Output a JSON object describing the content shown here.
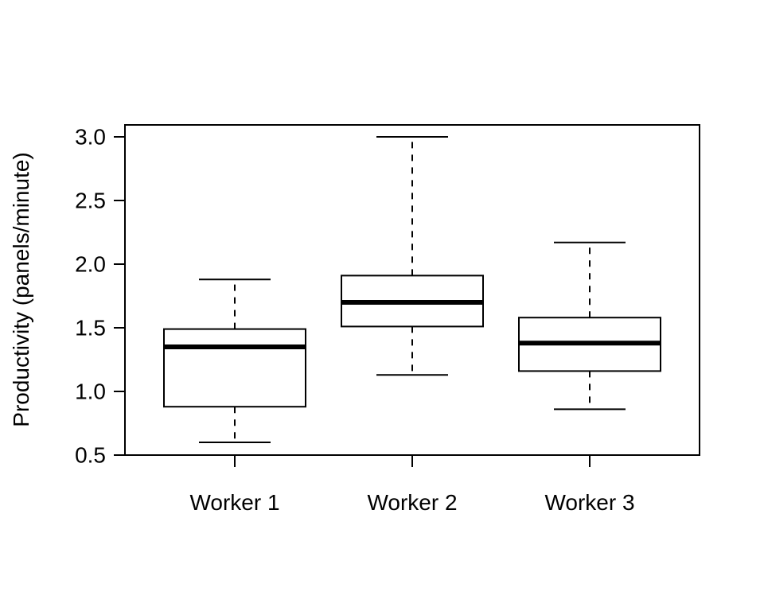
{
  "chart_data": {
    "type": "box",
    "title": "",
    "xlabel": "",
    "ylabel": "Productivity (panels/minute)",
    "ylim": [
      0.5,
      3.0
    ],
    "yticks": [
      0.5,
      1.0,
      1.5,
      2.0,
      2.5,
      3.0
    ],
    "ytick_labels": [
      "0.5",
      "1.0",
      "1.5",
      "2.0",
      "2.5",
      "3.0"
    ],
    "categories": [
      "Worker 1",
      "Worker 2",
      "Worker 3"
    ],
    "series": [
      {
        "category": "Worker 1",
        "min": 0.6,
        "q1": 0.88,
        "median": 1.35,
        "q3": 1.49,
        "max": 1.88
      },
      {
        "category": "Worker 2",
        "min": 1.13,
        "q1": 1.51,
        "median": 1.7,
        "q3": 1.91,
        "max": 3.0
      },
      {
        "category": "Worker 3",
        "min": 0.86,
        "q1": 1.16,
        "median": 1.38,
        "q3": 1.58,
        "max": 2.17
      }
    ],
    "grid": false,
    "legend": "none"
  }
}
